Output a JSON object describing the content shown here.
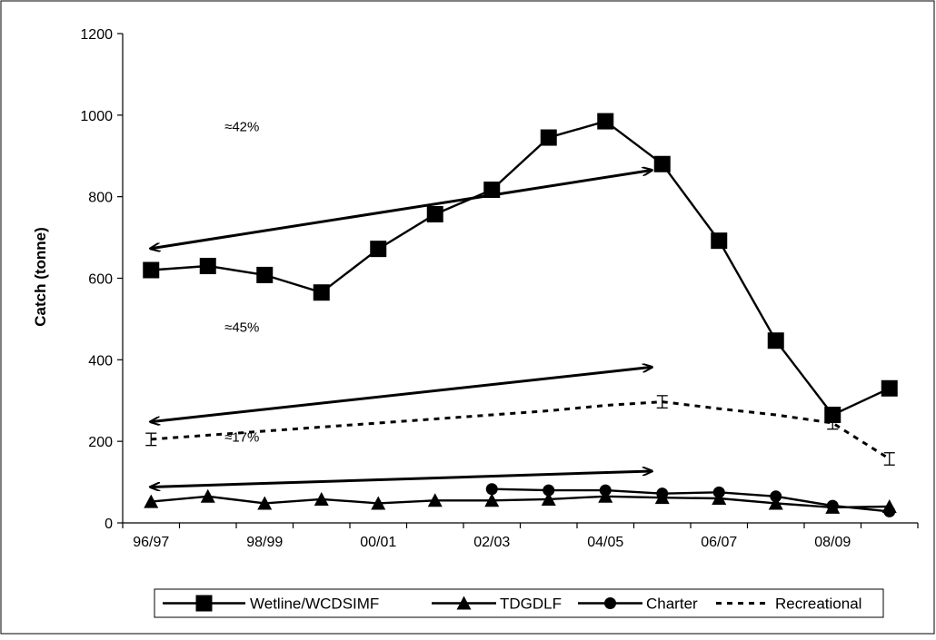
{
  "chart_data": {
    "type": "line",
    "ylabel": "Catch (tonne)",
    "xlabel": "",
    "ylim": [
      0,
      1200
    ],
    "yticks": [
      "0",
      "200",
      "400",
      "600",
      "800",
      "1000",
      "1200"
    ],
    "x_tick_labels": [
      "96/97",
      "98/99",
      "00/01",
      "02/03",
      "04/05",
      "06/07",
      "08/09"
    ],
    "categories": [
      "96/97",
      "97/98",
      "98/99",
      "99/00",
      "00/01",
      "01/02",
      "02/03",
      "03/04",
      "04/05",
      "05/06",
      "06/07",
      "07/08",
      "08/09",
      "09/10"
    ],
    "legend_position": "bottom",
    "grid": false,
    "series": [
      {
        "name": "Wetline/WCDSIMF",
        "marker": "square",
        "style": "solid",
        "values": [
          620,
          630,
          608,
          565,
          672,
          757,
          817,
          945,
          985,
          880,
          692,
          447,
          265,
          330
        ]
      },
      {
        "name": "TDGDLF",
        "marker": "triangle",
        "style": "solid",
        "values": [
          52,
          65,
          48,
          58,
          48,
          55,
          55,
          58,
          65,
          62,
          60,
          48,
          38,
          40
        ]
      },
      {
        "name": "Charter",
        "marker": "circle",
        "style": "solid",
        "values": [
          null,
          null,
          null,
          null,
          null,
          null,
          83,
          80,
          80,
          72,
          75,
          65,
          42,
          28
        ]
      },
      {
        "name": "Recreational",
        "marker": "errorbar",
        "style": "dashed",
        "values": [
          205,
          215,
          225,
          235,
          245,
          255,
          265,
          275,
          288,
          297,
          280,
          265,
          245,
          157
        ],
        "error_bar_points": [
          0,
          9,
          12,
          13
        ],
        "error_margin": 15
      }
    ],
    "annotations": [
      {
        "text": "≈42%",
        "arrow_from": [
          "96/97",
          673
        ],
        "arrow_to": [
          "05/06",
          865
        ]
      },
      {
        "text": "≈45%",
        "arrow_from": [
          "96/97",
          248
        ],
        "arrow_to": [
          "05/06",
          382
        ]
      },
      {
        "text": "≈17%",
        "arrow_from": [
          "96/97",
          88
        ],
        "arrow_to": [
          "05/06",
          127
        ]
      }
    ]
  }
}
